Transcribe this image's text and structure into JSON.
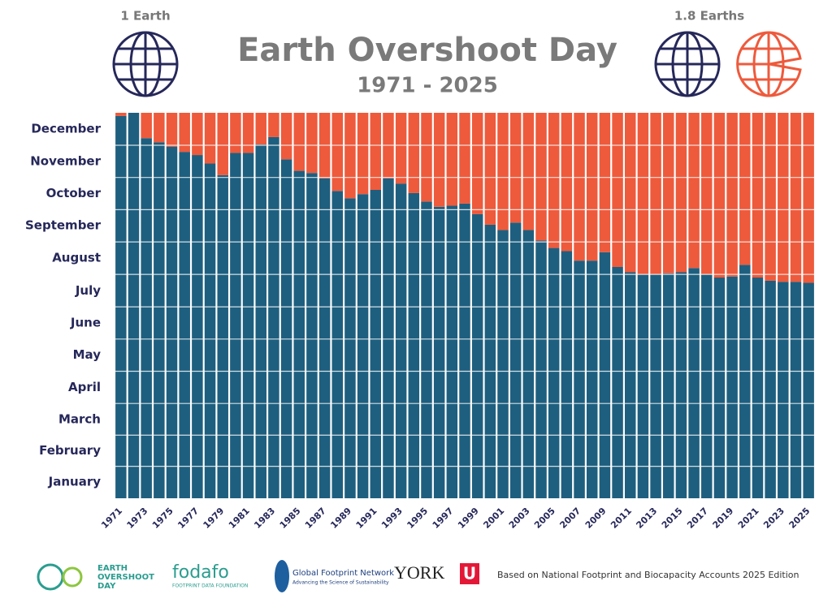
{
  "chart_data": {
    "type": "stacked-bar",
    "title": "Earth Overshoot Day",
    "subtitle": "1971 - 2025",
    "annotations": [
      "1 Earth",
      "1.8 Earths"
    ],
    "categories": [
      "1971",
      null,
      "1973",
      null,
      "1975",
      null,
      "1977",
      null,
      "1979",
      null,
      "1981",
      null,
      "1983",
      null,
      "1985",
      null,
      "1987",
      null,
      "1989",
      null,
      "1991",
      null,
      "1993",
      null,
      "1995",
      null,
      "1997",
      null,
      "1999",
      null,
      "2001",
      null,
      "2003",
      null,
      "2005",
      null,
      "2007",
      null,
      "2009",
      null,
      "2011",
      null,
      "2013",
      null,
      "2015",
      null,
      "2017",
      null,
      "2019",
      null,
      "2021",
      null,
      "2023",
      null,
      "2025"
    ],
    "series": [
      {
        "color": "#1e5f7f",
        "values": [
          362,
          365,
          341,
          337,
          333,
          328,
          325,
          317,
          306,
          327,
          327,
          335,
          342,
          321,
          310,
          308,
          303,
          291,
          284,
          288,
          292,
          303,
          298,
          289,
          281,
          276,
          277,
          279,
          269,
          259,
          254,
          261,
          254,
          244,
          237,
          234,
          225,
          225,
          233,
          219,
          214,
          212,
          212,
          213,
          214,
          218,
          212,
          209,
          210,
          221,
          209,
          206,
          205,
          205,
          204
        ]
      },
      {
        "color": "#ee5a3c",
        "values": [
          3,
          0,
          24,
          28,
          32,
          37,
          40,
          48,
          59,
          38,
          38,
          30,
          23,
          44,
          55,
          57,
          62,
          74,
          81,
          77,
          73,
          62,
          67,
          76,
          84,
          89,
          88,
          86,
          96,
          106,
          111,
          104,
          111,
          121,
          128,
          131,
          140,
          140,
          132,
          146,
          151,
          153,
          153,
          152,
          151,
          147,
          153,
          156,
          155,
          144,
          156,
          159,
          160,
          160,
          161
        ]
      }
    ],
    "ylim": [
      0,
      365
    ],
    "yticks": [
      {
        "value": 15.5,
        "label": "January"
      },
      {
        "value": 45,
        "label": "February"
      },
      {
        "value": 74.5,
        "label": "March"
      },
      {
        "value": 105,
        "label": "April"
      },
      {
        "value": 135.5,
        "label": "May"
      },
      {
        "value": 166,
        "label": "June"
      },
      {
        "value": 196.5,
        "label": "July"
      },
      {
        "value": 227.5,
        "label": "August"
      },
      {
        "value": 258,
        "label": "September"
      },
      {
        "value": 288.5,
        "label": "October"
      },
      {
        "value": 319,
        "label": "November"
      },
      {
        "value": 349.5,
        "label": "December"
      }
    ],
    "logos": [
      "EARTH",
      "OVERSHOOT",
      "DAY",
      "fodafo",
      "FOOTPRINT DATA FOUNDATION",
      "Global Footprint Network",
      "Advancing the Science of Sustainability",
      "YORK",
      "U"
    ],
    "source": "Based on National Footprint and Biocapacity Accounts 2025 Edition"
  }
}
